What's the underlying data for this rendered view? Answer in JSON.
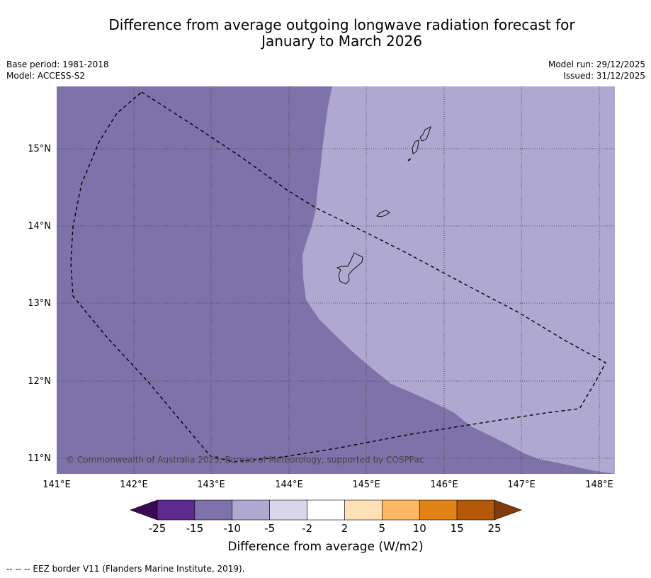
{
  "title": {
    "line1": "Difference from average outgoing longwave radiation forecast for",
    "line2": "January to March 2026"
  },
  "meta": {
    "base_period": "Base period: 1981-2018",
    "model": "Model: ACCESS-S2",
    "model_run": "Model run: 29/12/2025",
    "issued": "Issued: 31/12/2025"
  },
  "map": {
    "copyright": "© Commonwealth of Australia 2025, Bureau of Meteorology, supported by COSPPac",
    "lat_ticks": [
      "15°N",
      "14°N",
      "13°N",
      "12°N",
      "11°N"
    ],
    "lon_ticks": [
      "141°E",
      "142°E",
      "143°E",
      "144°E",
      "145°E",
      "146°E",
      "147°E",
      "148°E"
    ],
    "lat_values": [
      15,
      14,
      13,
      12,
      11
    ],
    "lon_values": [
      141,
      142,
      143,
      144,
      145,
      146,
      147,
      148
    ],
    "lon_range": [
      141,
      148.2
    ],
    "lat_range": [
      10.8,
      15.8
    ],
    "anomaly_zones": [
      {
        "category": "-15 to -10",
        "color": "#7f72ab"
      },
      {
        "category": "-10 to -5",
        "color": "#afa8d0"
      }
    ],
    "features": [
      "EEZ boundary",
      "Island coastlines"
    ]
  },
  "colorbar": {
    "label": "Difference from average (W/m2)",
    "ticks": [
      "-25",
      "-15",
      "-10",
      "-5",
      "-2",
      "2",
      "5",
      "10",
      "15",
      "25"
    ],
    "colors": [
      "#3b0a54",
      "#5d2a8e",
      "#7f72ab",
      "#afa8d0",
      "#d9d7ea",
      "#ffffff",
      "#fde0b6",
      "#fcb862",
      "#e08216",
      "#b35908",
      "#7f3b08"
    ]
  },
  "footer": {
    "legend": "--  --  -- EEZ border V11 (Flanders Marine Institute, 2019)."
  }
}
